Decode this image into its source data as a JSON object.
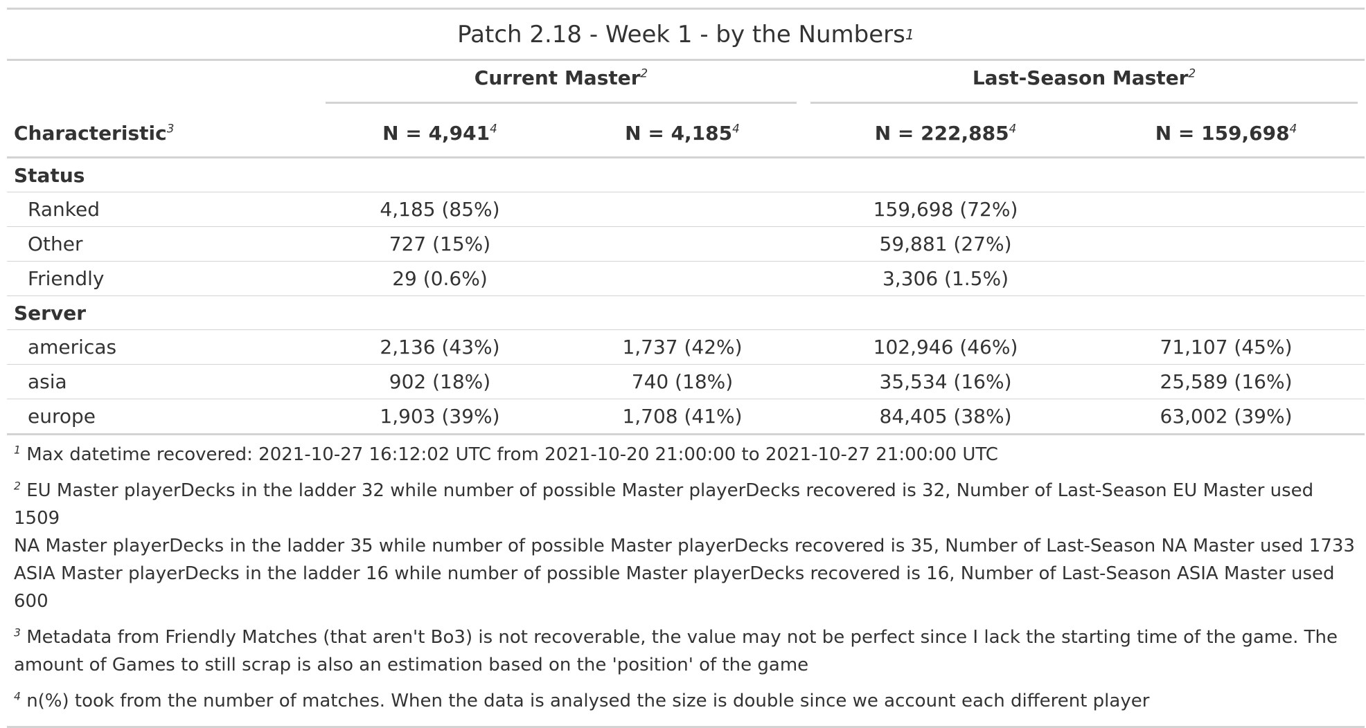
{
  "title": "Patch 2.18 - Week 1 - by the Numbers",
  "title_ref": "1",
  "spanners": [
    {
      "label": "Current Master",
      "ref": "2"
    },
    {
      "label": "Last-Season Master",
      "ref": "2"
    }
  ],
  "header": {
    "characteristic": "Characteristic",
    "characteristic_ref": "3",
    "columns": [
      {
        "label": "N = 4,941",
        "ref": "4"
      },
      {
        "label": "N = 4,185",
        "ref": "4"
      },
      {
        "label": "N = 222,885",
        "ref": "4"
      },
      {
        "label": "N = 159,698",
        "ref": "4"
      }
    ]
  },
  "groups": [
    {
      "label": "Status",
      "rows": [
        {
          "label": "Ranked",
          "values": [
            "4,185 (85%)",
            "",
            "159,698 (72%)",
            ""
          ]
        },
        {
          "label": "Other",
          "values": [
            "727 (15%)",
            "",
            "59,881 (27%)",
            ""
          ]
        },
        {
          "label": "Friendly",
          "values": [
            "29 (0.6%)",
            "",
            "3,306 (1.5%)",
            ""
          ]
        }
      ]
    },
    {
      "label": "Server",
      "rows": [
        {
          "label": "americas",
          "values": [
            "2,136 (43%)",
            "1,737 (42%)",
            "102,946 (46%)",
            "71,107 (45%)"
          ]
        },
        {
          "label": "asia",
          "values": [
            "902 (18%)",
            "740 (18%)",
            "35,534 (16%)",
            "25,589 (16%)"
          ]
        },
        {
          "label": "europe",
          "values": [
            "1,903 (39%)",
            "1,708 (41%)",
            "84,405 (38%)",
            "63,002 (39%)"
          ]
        }
      ]
    }
  ],
  "footnotes": [
    {
      "ref": "1",
      "lines": [
        "Max datetime recovered: 2021-10-27 16:12:02 UTC from 2021-10-20 21:00:00 to 2021-10-27 21:00:00 UTC"
      ]
    },
    {
      "ref": "2",
      "lines": [
        "EU Master playerDecks in the ladder 32 while number of possible Master playerDecks recovered is 32, Number of Last-Season EU Master used 1509",
        "NA Master playerDecks in the ladder 35 while number of possible Master playerDecks recovered is 35, Number of Last-Season NA Master used 1733",
        "ASIA Master playerDecks in the ladder 16 while number of possible Master playerDecks recovered is 16, Number of Last-Season ASIA Master used 600"
      ]
    },
    {
      "ref": "3",
      "lines": [
        "Metadata from Friendly Matches (that aren't Bo3) is not recoverable, the value may not be perfect since I lack the starting time of the game. The",
        "amount of Games to still scrap is also an estimation based on the 'position' of the game"
      ]
    },
    {
      "ref": "4",
      "lines": [
        "n(%) took from the number of matches. When the data is analysed the size is double since we account each different player"
      ]
    }
  ]
}
